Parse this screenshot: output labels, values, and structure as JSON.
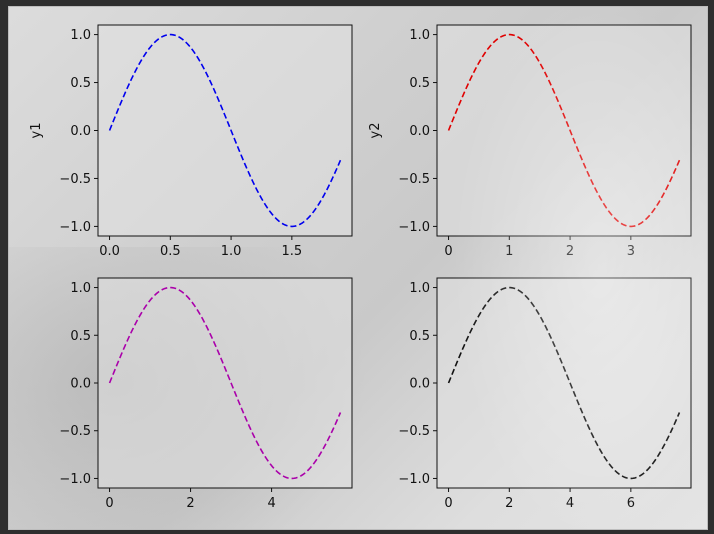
{
  "chart_data": [
    {
      "type": "line",
      "ylabel": "y1",
      "xlabel": "",
      "color": "#0000ee",
      "linestyle": "dashed",
      "function": "sin(pi*x)",
      "x": [
        0,
        0.1,
        0.2,
        0.3,
        0.4,
        0.5,
        0.6,
        0.7,
        0.8,
        0.9,
        1.0,
        1.1,
        1.2,
        1.3,
        1.4,
        1.5,
        1.6,
        1.7,
        1.8,
        1.9
      ],
      "y": [
        0,
        0.309,
        0.588,
        0.809,
        0.951,
        1.0,
        0.951,
        0.809,
        0.588,
        0.309,
        0.0,
        -0.309,
        -0.588,
        -0.809,
        -0.951,
        -1.0,
        -0.951,
        -0.809,
        -0.588,
        -0.309
      ],
      "xlim": [
        -0.095,
        1.995
      ],
      "ylim": [
        -1.1,
        1.1
      ],
      "xticks": [
        "0.0",
        "0.5",
        "1.0",
        "1.5"
      ],
      "xtick_values": [
        0,
        0.5,
        1.0,
        1.5
      ],
      "yticks": [
        "−1.0",
        "−0.5",
        "0.0",
        "0.5",
        "1.0"
      ],
      "ytick_values": [
        -1.0,
        -0.5,
        0.0,
        0.5,
        1.0
      ]
    },
    {
      "type": "line",
      "ylabel": "y2",
      "xlabel": "",
      "color": "#e00000",
      "linestyle": "dashed",
      "function": "sin(pi*x/2)",
      "x": [
        0,
        0.2,
        0.4,
        0.6,
        0.8,
        1.0,
        1.2,
        1.4,
        1.6,
        1.8,
        2.0,
        2.2,
        2.4,
        2.6,
        2.8,
        3.0,
        3.2,
        3.4,
        3.6,
        3.8
      ],
      "y": [
        0,
        0.309,
        0.588,
        0.809,
        0.951,
        1.0,
        0.951,
        0.809,
        0.588,
        0.309,
        0.0,
        -0.309,
        -0.588,
        -0.809,
        -0.951,
        -1.0,
        -0.951,
        -0.809,
        -0.588,
        -0.309
      ],
      "xlim": [
        -0.19,
        3.99
      ],
      "ylim": [
        -1.1,
        1.1
      ],
      "xticks": [
        "0",
        "1",
        "2",
        "3"
      ],
      "xtick_values": [
        0,
        1,
        2,
        3
      ],
      "yticks": [
        "−1.0",
        "−0.5",
        "0.0",
        "0.5",
        "1.0"
      ],
      "ytick_values": [
        -1.0,
        -0.5,
        0.0,
        0.5,
        1.0
      ]
    },
    {
      "type": "line",
      "ylabel": "",
      "xlabel": "",
      "color": "#aa00aa",
      "linestyle": "dashed",
      "function": "sin(pi*x/3)",
      "x": [
        0,
        0.3,
        0.6,
        0.9,
        1.2,
        1.5,
        1.8,
        2.1,
        2.4,
        2.7,
        3.0,
        3.3,
        3.6,
        3.9,
        4.2,
        4.5,
        4.8,
        5.1,
        5.4,
        5.7
      ],
      "y": [
        0,
        0.309,
        0.588,
        0.809,
        0.951,
        1.0,
        0.951,
        0.809,
        0.588,
        0.309,
        0.0,
        -0.309,
        -0.588,
        -0.809,
        -0.951,
        -1.0,
        -0.951,
        -0.809,
        -0.588,
        -0.309
      ],
      "xlim": [
        -0.285,
        5.985
      ],
      "ylim": [
        -1.1,
        1.1
      ],
      "xticks": [
        "0",
        "2",
        "4"
      ],
      "xtick_values": [
        0,
        2,
        4
      ],
      "yticks": [
        "−1.0",
        "−0.5",
        "0.0",
        "0.5",
        "1.0"
      ],
      "ytick_values": [
        -1.0,
        -0.5,
        0.0,
        0.5,
        1.0
      ]
    },
    {
      "type": "line",
      "ylabel": "",
      "xlabel": "",
      "color": "#111111",
      "linestyle": "dashed",
      "function": "sin(pi*x/4)",
      "x": [
        0,
        0.4,
        0.8,
        1.2,
        1.6,
        2.0,
        2.4,
        2.8,
        3.2,
        3.6,
        4.0,
        4.4,
        4.8,
        5.2,
        5.6,
        6.0,
        6.4,
        6.8,
        7.2,
        7.6
      ],
      "y": [
        0,
        0.309,
        0.588,
        0.809,
        0.951,
        1.0,
        0.951,
        0.809,
        0.588,
        0.309,
        0.0,
        -0.309,
        -0.588,
        -0.809,
        -0.951,
        -1.0,
        -0.951,
        -0.809,
        -0.588,
        -0.309
      ],
      "xlim": [
        -0.38,
        7.98
      ],
      "ylim": [
        -1.1,
        1.1
      ],
      "xticks": [
        "0",
        "2",
        "4",
        "6"
      ],
      "xtick_values": [
        0,
        2,
        4,
        6
      ],
      "yticks": [
        "−1.0",
        "−0.5",
        "0.0",
        "0.5",
        "1.0"
      ],
      "ytick_values": [
        -1.0,
        -0.5,
        0.0,
        0.5,
        1.0
      ]
    }
  ]
}
